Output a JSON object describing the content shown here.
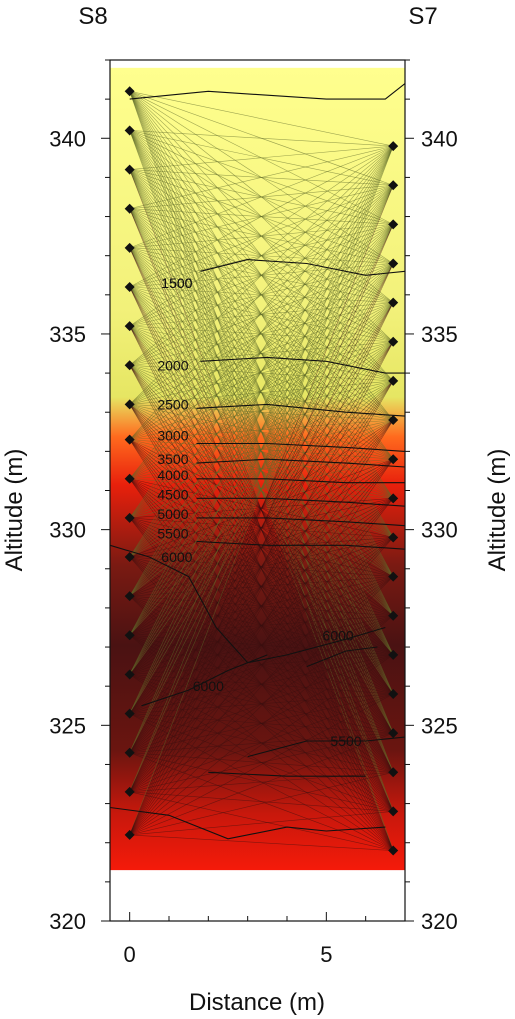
{
  "chart_data": {
    "type": "heatmap",
    "title": "",
    "xlabel": "Distance (m)",
    "ylabel": "Altitude (m)",
    "ylabel_right": "Altitude (m)",
    "xlim": [
      -0.5,
      7
    ],
    "ylim": [
      320,
      342
    ],
    "x_ticks": [
      0,
      5
    ],
    "y_ticks": [
      320,
      325,
      330,
      335,
      340
    ],
    "boreholes": [
      {
        "name": "S8",
        "x": 0
      },
      {
        "name": "S7",
        "x": 6.7
      }
    ],
    "colormap": [
      {
        "value": 0,
        "color": "#ffff8c"
      },
      {
        "value": 2500,
        "color": "#e4ea60"
      },
      {
        "value": 3200,
        "color": "#ff5a1e"
      },
      {
        "value": 4500,
        "color": "#e01a0a"
      },
      {
        "value": 6000,
        "color": "#4a1010"
      }
    ],
    "field_extent": {
      "x": [
        -0.5,
        7
      ],
      "y": [
        321.3,
        341.8
      ]
    },
    "sensors_left": {
      "x": 0,
      "y": [
        341.2,
        340.2,
        339.2,
        338.2,
        337.2,
        336.2,
        335.2,
        334.2,
        333.2,
        332.3,
        331.3,
        330.3,
        329.3,
        328.3,
        327.3,
        326.3,
        325.3,
        324.3,
        323.3,
        322.2
      ]
    },
    "sensors_right": {
      "x": 6.7,
      "y": [
        339.8,
        338.8,
        337.8,
        336.8,
        335.8,
        334.8,
        333.8,
        332.8,
        331.8,
        330.8,
        329.8,
        328.8,
        327.8,
        326.8,
        325.8,
        324.8,
        323.8,
        322.8,
        321.8
      ]
    },
    "contours": [
      {
        "label": "1500",
        "label_at": [
          1.2,
          336.3
        ],
        "points": [
          [
            0,
            341.0
          ],
          [
            1.0,
            341.1
          ],
          [
            2.0,
            341.2
          ],
          [
            3.5,
            341.1
          ],
          [
            5.0,
            341.0
          ],
          [
            6.5,
            341.0
          ],
          [
            7,
            341.4
          ]
        ]
      },
      {
        "label": "1500",
        "label_at": [
          1.2,
          336.3
        ],
        "points": [
          [
            1.8,
            336.6
          ],
          [
            3.0,
            336.9
          ],
          [
            4.5,
            336.8
          ],
          [
            6.0,
            336.5
          ],
          [
            7,
            336.6
          ]
        ]
      },
      {
        "label": "2000",
        "label_at": [
          1.1,
          334.2
        ],
        "points": [
          [
            1.8,
            334.3
          ],
          [
            3.5,
            334.4
          ],
          [
            5.0,
            334.3
          ],
          [
            6.5,
            334.0
          ],
          [
            7,
            334.0
          ]
        ]
      },
      {
        "label": "2500",
        "label_at": [
          1.1,
          333.2
        ],
        "points": [
          [
            1.7,
            333.1
          ],
          [
            3.5,
            333.2
          ],
          [
            5.5,
            333.0
          ],
          [
            7,
            332.9
          ]
        ]
      },
      {
        "label": "3000",
        "label_at": [
          1.1,
          332.4
        ],
        "points": [
          [
            1.7,
            332.2
          ],
          [
            3.5,
            332.2
          ],
          [
            5.5,
            332.1
          ],
          [
            7,
            332.0
          ]
        ]
      },
      {
        "label": "3500",
        "label_at": [
          1.1,
          331.8
        ],
        "points": [
          [
            1.7,
            331.7
          ],
          [
            3.5,
            331.8
          ],
          [
            5.5,
            331.7
          ],
          [
            7,
            331.6
          ]
        ]
      },
      {
        "label": "4000",
        "label_at": [
          1.1,
          331.4
        ],
        "points": [
          [
            1.7,
            331.3
          ],
          [
            3.5,
            331.3
          ],
          [
            5.5,
            331.2
          ],
          [
            7,
            331.2
          ]
        ]
      },
      {
        "label": "4500",
        "label_at": [
          1.1,
          330.9
        ],
        "points": [
          [
            1.7,
            330.8
          ],
          [
            3.5,
            330.8
          ],
          [
            5.5,
            330.7
          ],
          [
            7,
            330.6
          ]
        ]
      },
      {
        "label": "5000",
        "label_at": [
          1.1,
          330.4
        ],
        "points": [
          [
            1.7,
            330.3
          ],
          [
            3.5,
            330.3
          ],
          [
            5.5,
            330.2
          ],
          [
            7,
            330.1
          ]
        ]
      },
      {
        "label": "5500",
        "label_at": [
          1.1,
          329.9
        ],
        "points": [
          [
            1.7,
            329.7
          ],
          [
            3.5,
            329.6
          ],
          [
            5.5,
            329.6
          ],
          [
            7,
            329.5
          ]
        ]
      },
      {
        "label": "6000",
        "label_at": [
          1.2,
          329.3
        ],
        "points": [
          [
            -0.5,
            329.6
          ],
          [
            0.5,
            329.3
          ],
          [
            1.5,
            328.8
          ],
          [
            2.2,
            327.5
          ],
          [
            3.0,
            326.6
          ],
          [
            4.0,
            326.8
          ],
          [
            5.5,
            327.2
          ],
          [
            6.5,
            327.5
          ]
        ]
      },
      {
        "label": "6000",
        "label_at": [
          5.3,
          327.3
        ],
        "points": [
          [
            4.5,
            326.5
          ],
          [
            5.5,
            326.9
          ],
          [
            6.3,
            327.0
          ]
        ]
      },
      {
        "label": "6000",
        "label_at": [
          2.0,
          326.0
        ],
        "points": [
          [
            0.3,
            325.5
          ],
          [
            1.5,
            325.9
          ],
          [
            2.5,
            326.4
          ],
          [
            3.5,
            326.8
          ]
        ]
      },
      {
        "label": "5500",
        "label_at": [
          5.5,
          324.6
        ],
        "points": [
          [
            3.0,
            324.2
          ],
          [
            4.5,
            324.6
          ],
          [
            6.0,
            324.6
          ],
          [
            7,
            324.7
          ]
        ]
      },
      {
        "label": "",
        "label_at": null,
        "points": [
          [
            2.0,
            323.8
          ],
          [
            4.0,
            323.7
          ],
          [
            6.0,
            323.7
          ]
        ]
      },
      {
        "label": "",
        "label_at": null,
        "points": [
          [
            -0.5,
            322.9
          ],
          [
            1.0,
            322.7
          ],
          [
            2.5,
            322.1
          ],
          [
            4.0,
            322.4
          ],
          [
            5.0,
            322.3
          ],
          [
            6.5,
            322.4
          ]
        ]
      }
    ]
  },
  "labels": {
    "left_corner": "S8",
    "right_corner": "S7"
  }
}
